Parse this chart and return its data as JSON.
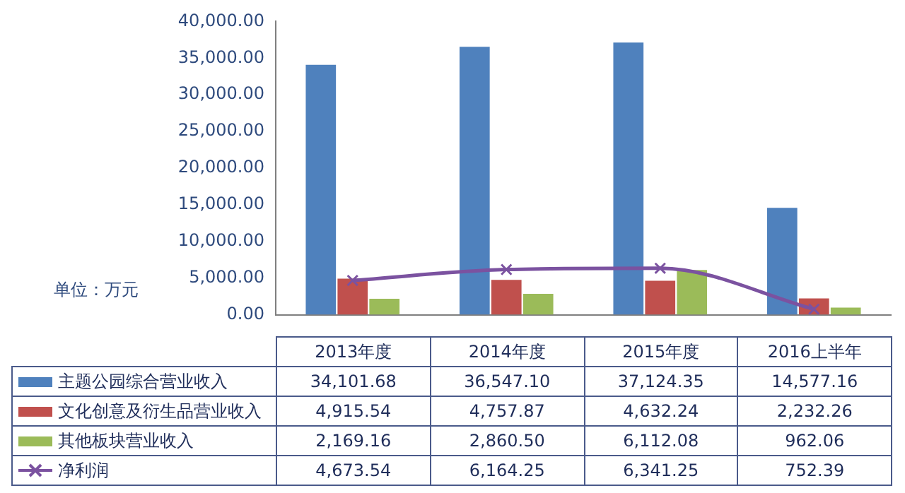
{
  "chart_data": {
    "type": "bar",
    "categories": [
      "2013年度",
      "2014年度",
      "2015年度",
      "2016上半年"
    ],
    "series": [
      {
        "name": "主题公园综合营业收入",
        "color": "#4f81bd",
        "values": [
          34101.68,
          36547.1,
          37124.35,
          14577.16
        ]
      },
      {
        "name": "文化创意及衍生品营业收入",
        "color": "#c0504d",
        "values": [
          4915.54,
          4757.87,
          4632.24,
          2232.26
        ]
      },
      {
        "name": "其他板块营业收入",
        "color": "#9bbb59",
        "values": [
          2169.16,
          2860.5,
          6112.08,
          962.06
        ]
      },
      {
        "name": "净利润",
        "type": "line",
        "color": "#7b52a0",
        "marker": "cross",
        "values": [
          4673.54,
          6164.25,
          6341.25,
          752.39
        ]
      }
    ],
    "ylim": [
      0,
      40000
    ],
    "yticks": [
      {
        "value": 0,
        "label": "0.00"
      },
      {
        "value": 5000,
        "label": "5,000.00"
      },
      {
        "value": 10000,
        "label": "10,000.00"
      },
      {
        "value": 15000,
        "label": "15,000.00"
      },
      {
        "value": 20000,
        "label": "20,000.00"
      },
      {
        "value": 25000,
        "label": "25,000.00"
      },
      {
        "value": 30000,
        "label": "30,000.00"
      },
      {
        "value": 35000,
        "label": "35,000.00"
      },
      {
        "value": 40000,
        "label": "40,000.00"
      }
    ],
    "value_labels": [
      [
        "34,101.68",
        "36,547.10",
        "37,124.35",
        "14,577.16"
      ],
      [
        "4,915.54",
        "4,757.87",
        "4,632.24",
        "2,232.26"
      ],
      [
        "2,169.16",
        "2,860.50",
        "6,112.08",
        "962.06"
      ],
      [
        "4,673.54",
        "6,164.25",
        "6,341.25",
        "752.39"
      ]
    ],
    "annotations": [
      "单位：万元"
    ],
    "legend": "bottom",
    "grid": false,
    "tick_labels": "y"
  }
}
